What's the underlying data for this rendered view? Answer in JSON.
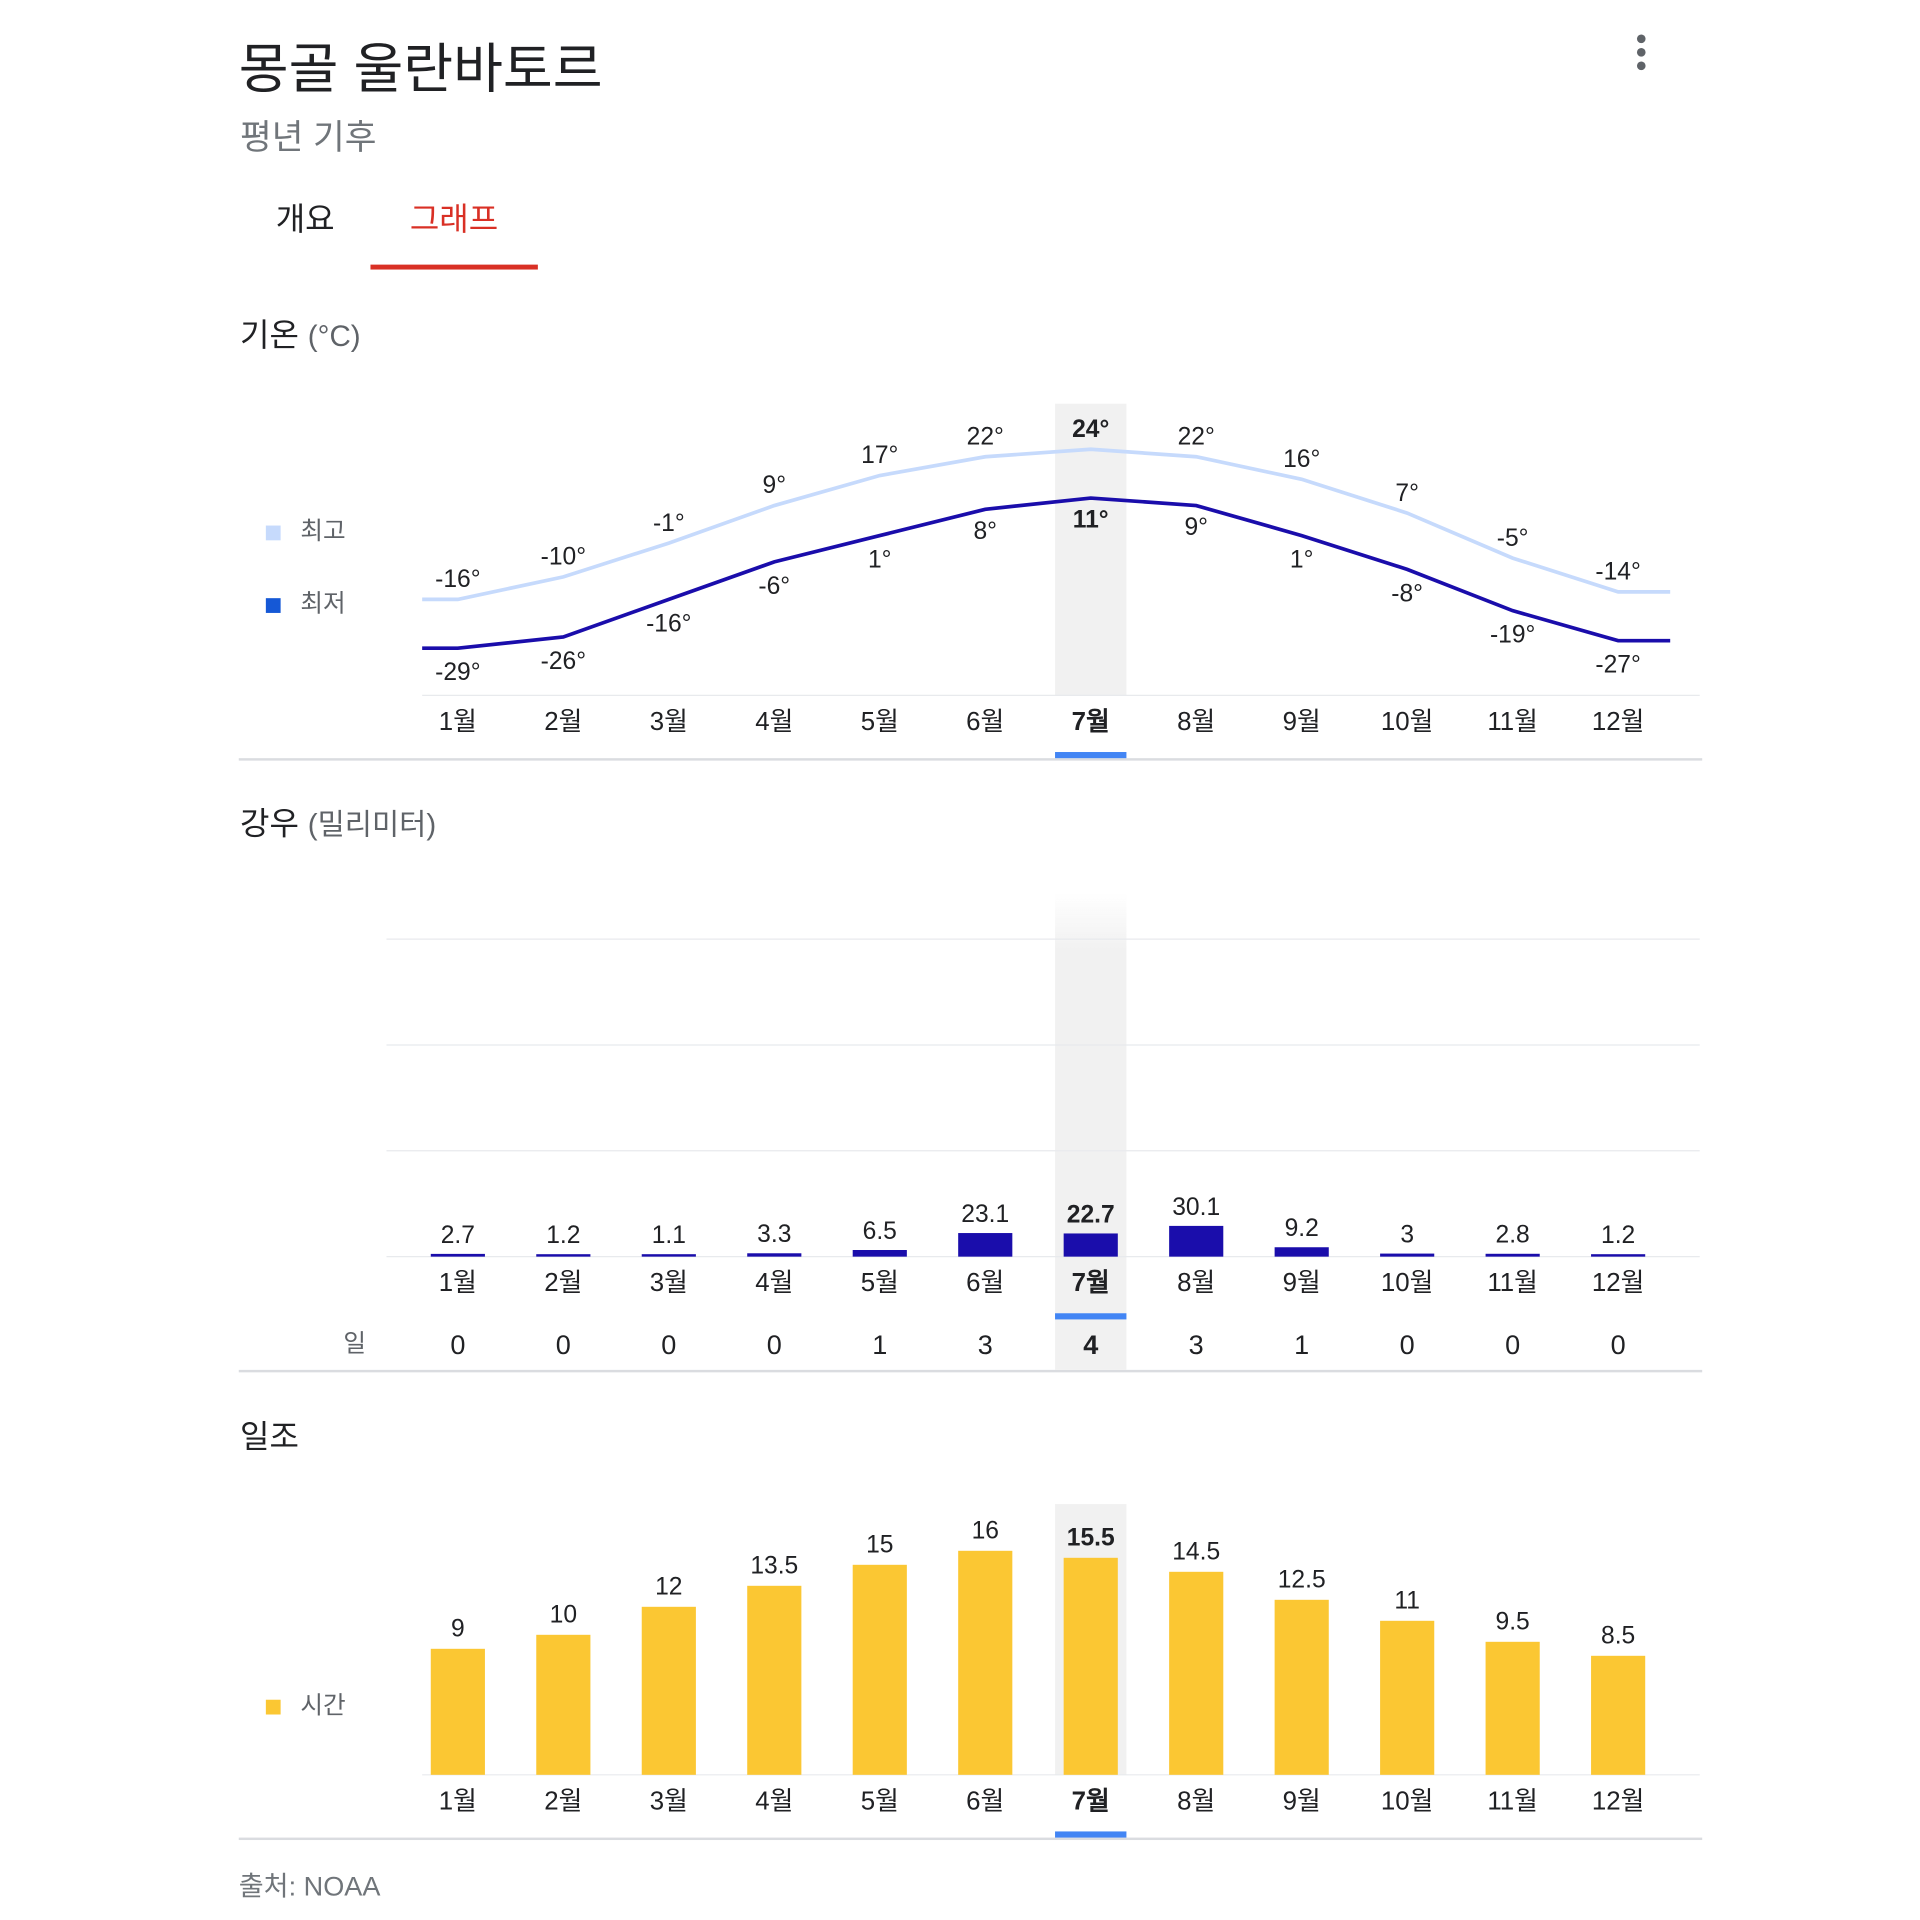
{
  "header": {
    "title": "몽골 울란바토르",
    "subtitle": "평년 기후",
    "more_icon": "more-vert-icon"
  },
  "tabs": [
    {
      "label": "개요",
      "active": false
    },
    {
      "label": "그래프",
      "active": true
    }
  ],
  "selected_month_index": 6,
  "colors": {
    "accent": "#d93025",
    "high": "#c6dafc",
    "low": "#1a0dab",
    "low_legend": "#1558d6",
    "rain": "#1a0dab",
    "sun": "#fbc733",
    "highlight": "#f1f3f4",
    "selector": "#4285f4"
  },
  "temperature": {
    "title": "기온",
    "unit": "(°C)",
    "legend": {
      "high": "최고",
      "low": "최저"
    }
  },
  "rain": {
    "title": "강우",
    "unit": "(밀리미터)",
    "days_label": "일"
  },
  "sunshine": {
    "title": "일조",
    "legend": "시간"
  },
  "source": "출처: NOAA",
  "chart_data": [
    {
      "type": "line",
      "title": "기온 (°C)",
      "categories": [
        "1월",
        "2월",
        "3월",
        "4월",
        "5월",
        "6월",
        "7월",
        "8월",
        "9월",
        "10월",
        "11월",
        "12월"
      ],
      "series": [
        {
          "name": "최고",
          "values": [
            -16,
            -10,
            -1,
            9,
            17,
            22,
            24,
            22,
            16,
            7,
            -5,
            -14
          ],
          "labels": [
            "-16°",
            "-10°",
            "-1°",
            "9°",
            "17°",
            "22°",
            "24°",
            "22°",
            "16°",
            "7°",
            "-5°",
            "-14°"
          ]
        },
        {
          "name": "최저",
          "values": [
            -29,
            -26,
            -16,
            -6,
            1,
            8,
            11,
            9,
            1,
            -8,
            -19,
            -27
          ],
          "labels": [
            "-29°",
            "-26°",
            "-16°",
            "-6°",
            "1°",
            "8°",
            "11°",
            "9°",
            "1°",
            "-8°",
            "-19°",
            "-27°"
          ]
        }
      ]
    },
    {
      "type": "bar",
      "title": "강우 (밀리미터)",
      "categories": [
        "1월",
        "2월",
        "3월",
        "4월",
        "5월",
        "6월",
        "7월",
        "8월",
        "9월",
        "10월",
        "11월",
        "12월"
      ],
      "values": [
        2.7,
        1.2,
        1.1,
        3.3,
        6.5,
        23.1,
        22.7,
        30.1,
        9.2,
        3,
        2.8,
        1.2
      ],
      "labels": [
        "2.7",
        "1.2",
        "1.1",
        "3.3",
        "6.5",
        "23.1",
        "22.7",
        "30.1",
        "9.2",
        "3",
        "2.8",
        "1.2"
      ],
      "days": [
        "0",
        "0",
        "0",
        "0",
        "1",
        "3",
        "4",
        "3",
        "1",
        "0",
        "0",
        "0"
      ]
    },
    {
      "type": "bar",
      "title": "일조",
      "series_name": "시간",
      "categories": [
        "1월",
        "2월",
        "3월",
        "4월",
        "5월",
        "6월",
        "7월",
        "8월",
        "9월",
        "10월",
        "11월",
        "12월"
      ],
      "values": [
        9,
        10,
        12,
        13.5,
        15,
        16,
        15.5,
        14.5,
        12.5,
        11,
        9.5,
        8.5
      ],
      "labels": [
        "9",
        "10",
        "12",
        "13.5",
        "15",
        "16",
        "15.5",
        "14.5",
        "12.5",
        "11",
        "9.5",
        "8.5"
      ]
    }
  ]
}
